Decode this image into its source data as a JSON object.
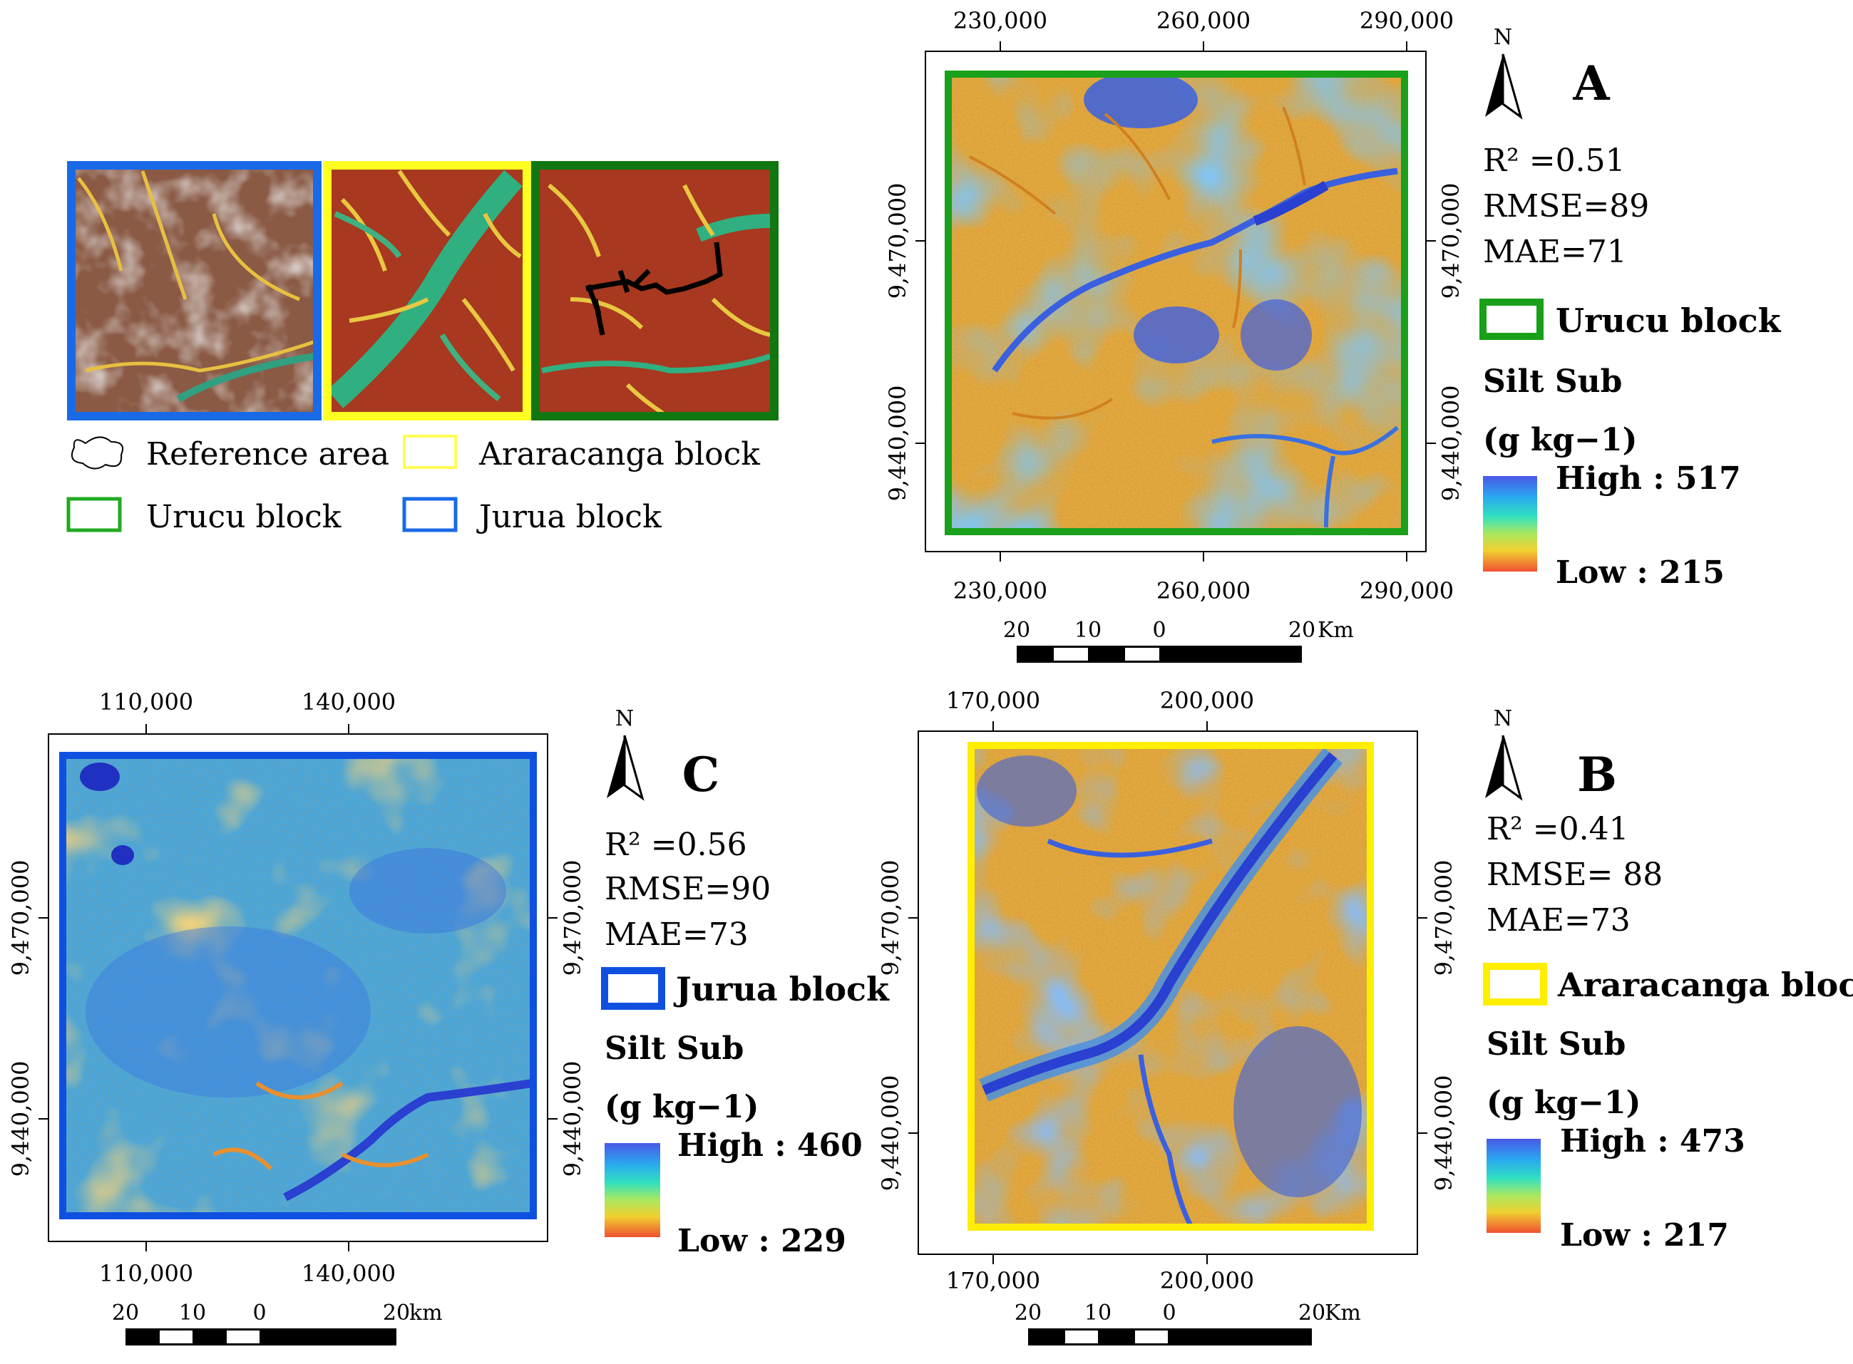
{
  "overview": {
    "legend": [
      {
        "key": "reference",
        "label": "Reference area",
        "color": "#000000"
      },
      {
        "key": "araracanga",
        "label": "Araracanga block",
        "color": "#ffff33"
      },
      {
        "key": "urucu",
        "label": "Urucu block",
        "color": "#22aa22"
      },
      {
        "key": "jurua",
        "label": "Jurua block",
        "color": "#1060e0"
      }
    ]
  },
  "panels": {
    "A": {
      "letter": "A",
      "north": "N",
      "r2": "R² =0.51",
      "rmse": "RMSE=89",
      "mae": "MAE=71",
      "block_label": "Urucu block",
      "block_color": "#18a018",
      "var_title": "Silt Sub",
      "var_unit": "(g kg−1)",
      "high": "High : 517",
      "low": "Low : 215",
      "x_ticks": [
        "230,000",
        "260,000",
        "290,000"
      ],
      "y_ticks": [
        "9,470,000",
        "9,440,000"
      ],
      "scale": [
        "20",
        "10",
        "0",
        "20",
        "Km"
      ]
    },
    "B": {
      "letter": "B",
      "north": "N",
      "r2": "R² =0.41",
      "rmse": "RMSE= 88",
      "mae": "MAE=73",
      "block_label": "Araracanga block",
      "block_color": "#ffee00",
      "var_title": "Silt Sub",
      "var_unit": "(g kg−1)",
      "high": "High : 473",
      "low": "Low : 217",
      "x_ticks": [
        "170,000",
        "200,000"
      ],
      "y_ticks": [
        "9,470,000",
        "9,440,000"
      ],
      "scale": [
        "20",
        "10",
        "0",
        "20",
        "Km"
      ]
    },
    "C": {
      "letter": "C",
      "north": "N",
      "r2": "R² =0.56",
      "rmse": "RMSE=90",
      "mae": "MAE=73",
      "block_label": "Jurua block",
      "block_color": "#1050e0",
      "var_title": "Silt Sub",
      "var_unit": "(g kg−1)",
      "high": "High : 460",
      "low": "Low : 229",
      "x_ticks": [
        "110,000",
        "140,000"
      ],
      "y_ticks": [
        "9,470,000",
        "9,440,000"
      ],
      "scale": [
        "20",
        "10",
        "0",
        "20",
        "km"
      ]
    }
  }
}
